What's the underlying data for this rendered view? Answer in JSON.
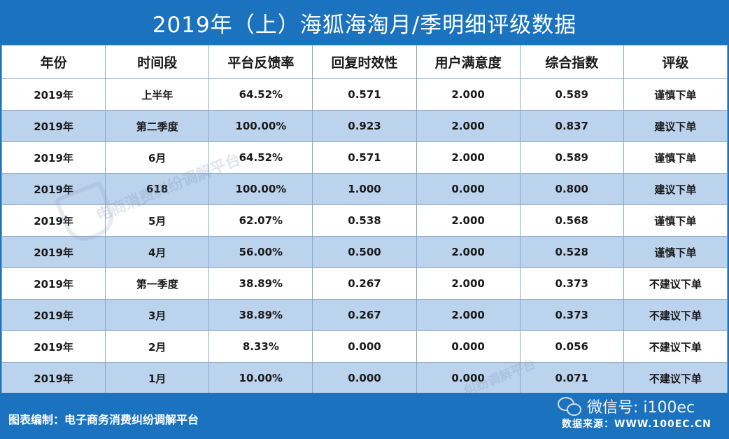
{
  "title": "2019年（上）海狐海淘月/季明细评级数据",
  "table": {
    "headers": [
      "年份",
      "时间段",
      "平台反馈率",
      "回复时效性",
      "用户满意度",
      "综合指数",
      "评级"
    ],
    "rows": [
      [
        "2019年",
        "上半年",
        "64.52%",
        "0.571",
        "2.000",
        "0.589",
        "谨慎下单"
      ],
      [
        "2019年",
        "第二季度",
        "100.00%",
        "0.923",
        "2.000",
        "0.837",
        "建议下单"
      ],
      [
        "2019年",
        "6月",
        "64.52%",
        "0.571",
        "2.000",
        "0.589",
        "谨慎下单"
      ],
      [
        "2019年",
        "618",
        "100.00%",
        "1.000",
        "0.000",
        "0.800",
        "建议下单"
      ],
      [
        "2019年",
        "5月",
        "62.07%",
        "0.538",
        "2.000",
        "0.568",
        "谨慎下单"
      ],
      [
        "2019年",
        "4月",
        "56.00%",
        "0.500",
        "2.000",
        "0.528",
        "谨慎下单"
      ],
      [
        "2019年",
        "第一季度",
        "38.89%",
        "0.267",
        "2.000",
        "0.373",
        "不建议下单"
      ],
      [
        "2019年",
        "3月",
        "38.89%",
        "0.267",
        "2.000",
        "0.373",
        "不建议下单"
      ],
      [
        "2019年",
        "2月",
        "8.33%",
        "0.000",
        "0.000",
        "0.056",
        "不建议下单"
      ],
      [
        "2019年",
        "1月",
        "10.00%",
        "0.000",
        "0.000",
        "0.071",
        "不建议下单"
      ]
    ]
  },
  "watermark": {
    "text1": "电商消费纠纷调解平台",
    "text2": "纠纷调解平台"
  },
  "footer": {
    "left": "图表编制：电子商务消费纠纷调解平台",
    "wechat": "微信号: i100ec",
    "right": "数据来源：WWW.100EC.CN"
  },
  "colors": {
    "brand_blue": "#1b73bf",
    "row_alt": "#bcd3ee"
  }
}
